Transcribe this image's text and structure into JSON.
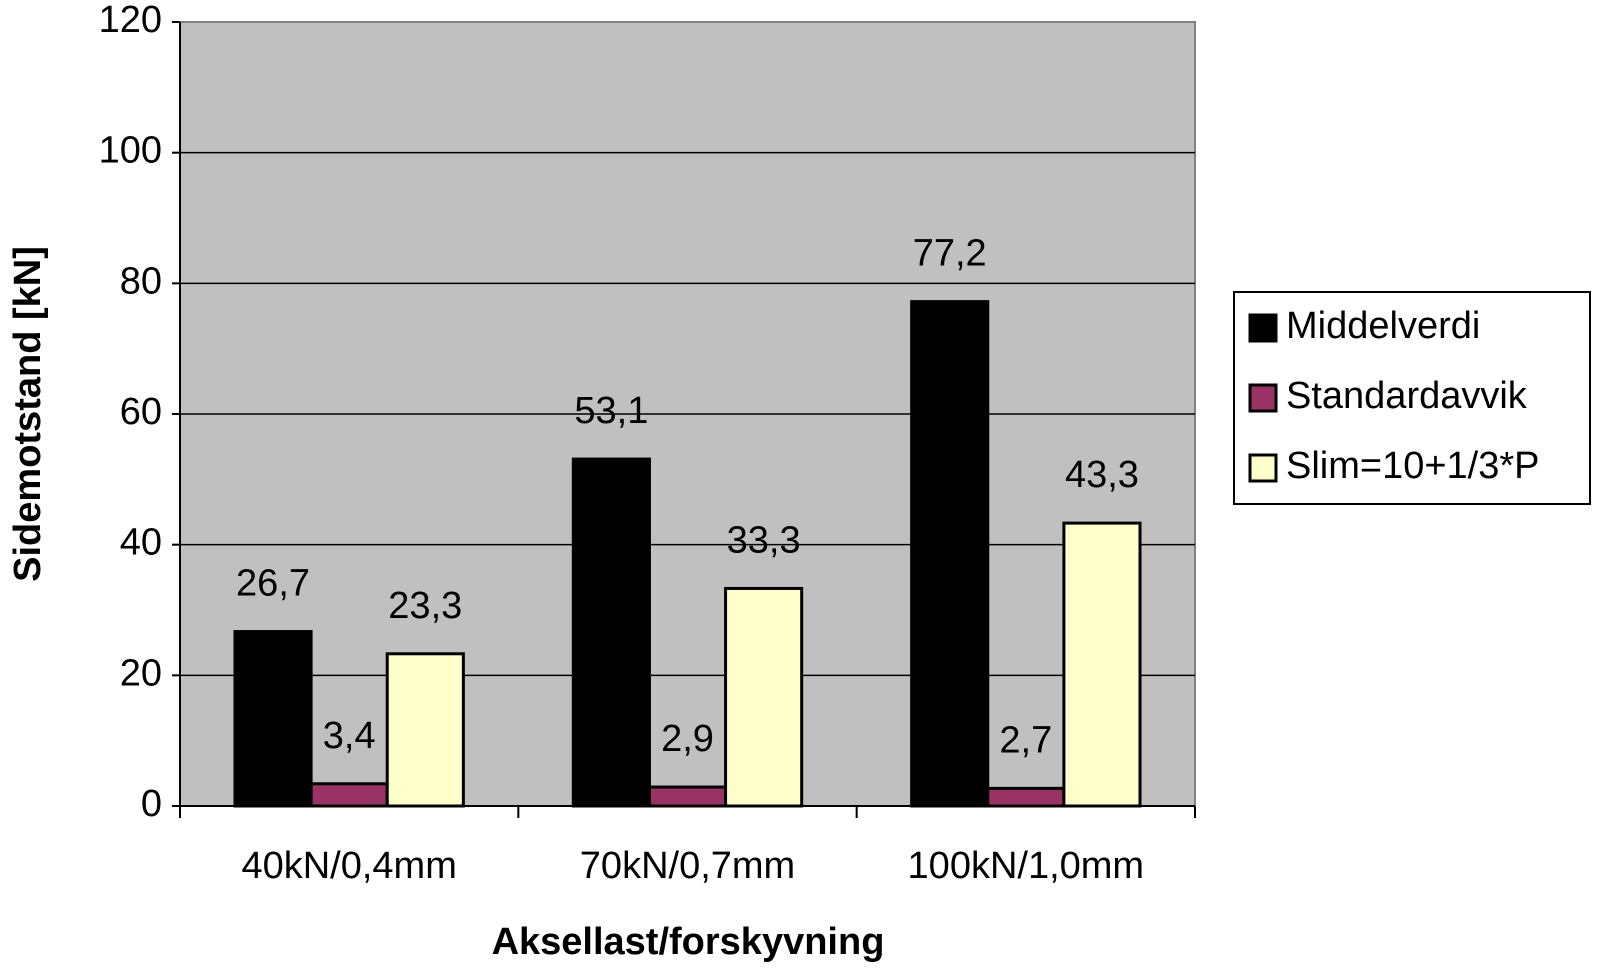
{
  "chart_data": {
    "type": "bar",
    "x_label": "Aksellast/forskyvning",
    "y_label": "Sidemotstand [kN]",
    "categories": [
      "40kN/0,4mm",
      "70kN/0,7mm",
      "100kN/1,0mm"
    ],
    "series": [
      {
        "name": "Middelverdi",
        "color": "#000000",
        "values": [
          26.7,
          53.1,
          77.2
        ],
        "value_labels": [
          "26,7",
          "53,1",
          "77,2"
        ]
      },
      {
        "name": "Standardavvik",
        "color": "#993366",
        "values": [
          3.4,
          2.9,
          2.7
        ],
        "value_labels": [
          "3,4",
          "2,9",
          "2,7"
        ]
      },
      {
        "name": "Slim=10+1/3*P",
        "color": "#ffffcc",
        "values": [
          23.3,
          33.3,
          43.3
        ],
        "value_labels": [
          "23,3",
          "33,3",
          "43,3"
        ]
      }
    ],
    "ylim": [
      0,
      120
    ],
    "yticks": [
      0,
      20,
      40,
      60,
      80,
      100,
      120
    ],
    "grid": true,
    "legend": "right"
  }
}
